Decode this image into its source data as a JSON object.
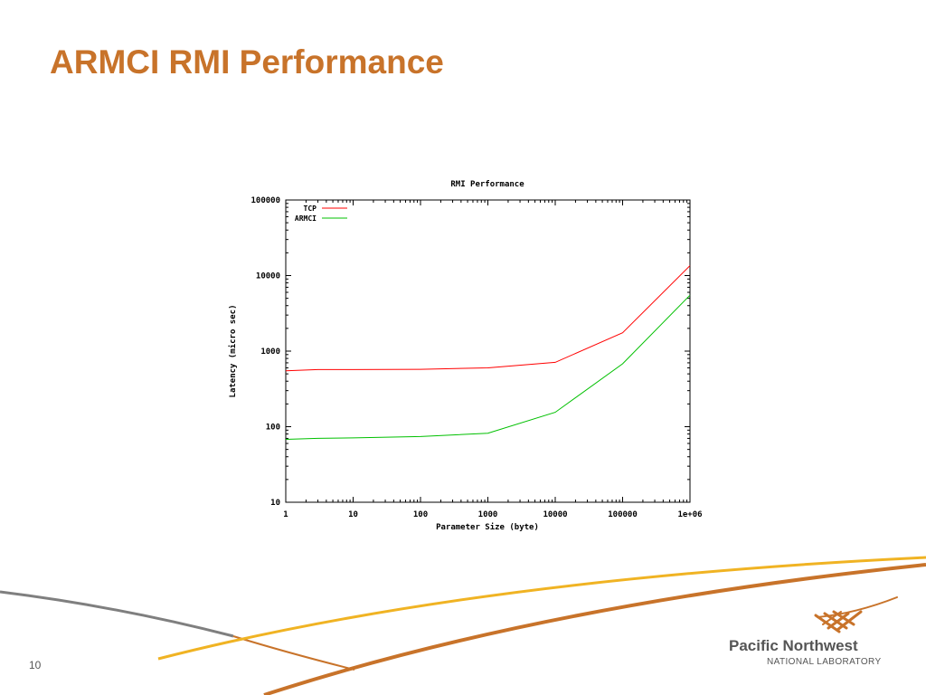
{
  "slide": {
    "title": "ARMCI RMI Performance",
    "page_number": "10",
    "title_color": "#c8732a"
  },
  "logo": {
    "name": "Pacific Northwest",
    "subtitle": "NATIONAL LABORATORY",
    "mark_color": "#c8732a"
  },
  "chart_data": {
    "type": "line",
    "title": "RMI Performance",
    "xlabel": "Parameter Size (byte)",
    "ylabel": "Latency (micro sec)",
    "x_scale": "log",
    "y_scale": "log",
    "xlim": [
      1,
      1000000
    ],
    "ylim": [
      10,
      100000
    ],
    "x_ticks": [
      "1",
      "10",
      "100",
      "1000",
      "10000",
      "100000",
      "1e+06"
    ],
    "y_ticks": [
      "10",
      "100",
      "1000",
      "10000",
      "100000"
    ],
    "grid": false,
    "legend_position": "top-left",
    "x": [
      1,
      3,
      10,
      100,
      1000,
      10000,
      100000,
      1000000
    ],
    "series": [
      {
        "name": "TCP",
        "color": "#ff0000",
        "values": [
          550,
          570,
          570,
          575,
          600,
          710,
          1750,
          13500
        ]
      },
      {
        "name": "ARMCI",
        "color": "#00c000",
        "values": [
          68,
          70,
          71,
          74,
          82,
          155,
          680,
          5500
        ]
      }
    ]
  }
}
